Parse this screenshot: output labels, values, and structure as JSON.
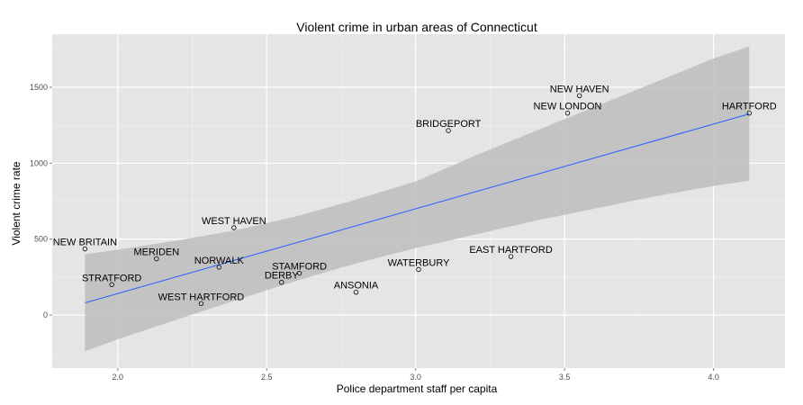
{
  "chart_data": {
    "type": "scatter",
    "title": "Violent crime in urban areas of Connecticut",
    "xlabel": "Police department staff per capita",
    "ylabel": "Violent crime rate",
    "xlim": [
      1.78,
      4.24
    ],
    "ylim": [
      -350,
      1850
    ],
    "x_ticks": [
      2.0,
      2.5,
      3.0,
      3.5,
      4.0
    ],
    "x_tick_labels": [
      "2.0",
      "2.5",
      "3.0",
      "3.5",
      "4.0"
    ],
    "y_ticks": [
      0,
      500,
      1000,
      1500
    ],
    "y_tick_labels": [
      "0",
      "500",
      "1000",
      "1500"
    ],
    "grid": true,
    "points": [
      {
        "label": "NEW BRITAIN",
        "x": 1.89,
        "y": 435
      },
      {
        "label": "STRATFORD",
        "x": 1.98,
        "y": 200
      },
      {
        "label": "MERIDEN",
        "x": 2.13,
        "y": 370
      },
      {
        "label": "WEST HARTFORD",
        "x": 2.28,
        "y": 75
      },
      {
        "label": "NORWALK",
        "x": 2.34,
        "y": 315
      },
      {
        "label": "WEST HAVEN",
        "x": 2.39,
        "y": 575
      },
      {
        "label": "DERBY",
        "x": 2.55,
        "y": 215
      },
      {
        "label": "STAMFORD",
        "x": 2.61,
        "y": 275
      },
      {
        "label": "ANSONIA",
        "x": 2.8,
        "y": 150
      },
      {
        "label": "WATERBURY",
        "x": 3.01,
        "y": 300
      },
      {
        "label": "BRIDGEPORT",
        "x": 3.11,
        "y": 1215
      },
      {
        "label": "EAST HARTFORD",
        "x": 3.32,
        "y": 385
      },
      {
        "label": "NEW LONDON",
        "x": 3.51,
        "y": 1330
      },
      {
        "label": "NEW HAVEN",
        "x": 3.55,
        "y": 1445
      },
      {
        "label": "HARTFORD",
        "x": 4.12,
        "y": 1330
      }
    ],
    "fit": {
      "x": [
        1.89,
        4.12
      ],
      "y": [
        80,
        1325
      ],
      "color": "#3366ff"
    },
    "ci_band": {
      "x": [
        1.89,
        2.0,
        2.2,
        2.4,
        2.6,
        2.8,
        3.0,
        3.2,
        3.4,
        3.6,
        3.8,
        4.0,
        4.12
      ],
      "upper": [
        400,
        430,
        490,
        560,
        650,
        760,
        880,
        1050,
        1210,
        1370,
        1530,
        1690,
        1770
      ],
      "lower": [
        -240,
        -160,
        -30,
        100,
        225,
        340,
        440,
        530,
        620,
        700,
        780,
        850,
        885
      ],
      "color": "#bdbdbd"
    },
    "colors": {
      "panel": "#e5e5e5",
      "grid_major": "#ffffff",
      "grid_minor": "#f2f2f2"
    }
  }
}
